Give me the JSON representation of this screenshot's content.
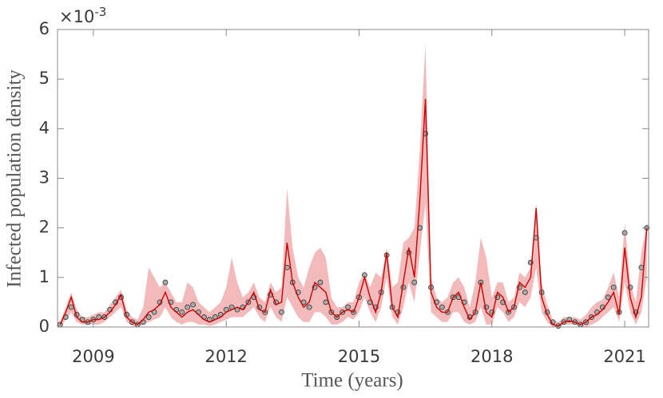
{
  "chart_data": {
    "type": "line",
    "x_label": "Time (years)",
    "y_label": "Infected population density",
    "y_scale_label": {
      "base": "×10",
      "exponent": "-3"
    },
    "xlim": [
      2008.19,
      2021.54
    ],
    "xticks": [
      2009,
      2012,
      2015,
      2018,
      2021
    ],
    "ylim": [
      0,
      6
    ],
    "yticks": [
      0,
      1,
      2,
      3,
      4,
      5,
      6
    ],
    "x": [
      2008.25,
      2008.375,
      2008.5,
      2008.625,
      2008.75,
      2008.875,
      2009.0,
      2009.125,
      2009.25,
      2009.375,
      2009.5,
      2009.625,
      2009.75,
      2009.875,
      2010.0,
      2010.125,
      2010.25,
      2010.375,
      2010.5,
      2010.625,
      2010.75,
      2010.875,
      2011.0,
      2011.125,
      2011.25,
      2011.375,
      2011.5,
      2011.625,
      2011.75,
      2011.875,
      2012.0,
      2012.125,
      2012.25,
      2012.375,
      2012.5,
      2012.625,
      2012.75,
      2012.875,
      2013.0,
      2013.125,
      2013.25,
      2013.375,
      2013.5,
      2013.625,
      2013.75,
      2013.875,
      2014.0,
      2014.125,
      2014.25,
      2014.375,
      2014.5,
      2014.625,
      2014.75,
      2014.875,
      2015.0,
      2015.125,
      2015.25,
      2015.375,
      2015.5,
      2015.625,
      2015.75,
      2015.875,
      2016.0,
      2016.125,
      2016.25,
      2016.375,
      2016.5,
      2016.625,
      2016.75,
      2016.875,
      2017.0,
      2017.125,
      2017.25,
      2017.375,
      2017.5,
      2017.625,
      2017.75,
      2017.875,
      2018.0,
      2018.125,
      2018.25,
      2018.375,
      2018.5,
      2018.625,
      2018.75,
      2018.875,
      2019.0,
      2019.125,
      2019.25,
      2019.375,
      2019.5,
      2019.625,
      2019.75,
      2019.875,
      2020.0,
      2020.125,
      2020.25,
      2020.375,
      2020.5,
      2020.625,
      2020.75,
      2020.875,
      2021.0,
      2021.125,
      2021.25,
      2021.375,
      2021.5
    ],
    "band": {
      "color": "#eea3a3",
      "lower": [
        0,
        0.15,
        0.3,
        0.1,
        0.05,
        0.05,
        0.05,
        0.05,
        0.1,
        0.2,
        0.3,
        0.4,
        0.1,
        0.02,
        0,
        0.05,
        0.1,
        0.15,
        0.2,
        0.4,
        0.2,
        0.1,
        0.05,
        0.1,
        0.1,
        0.05,
        0.05,
        0.02,
        0.05,
        0.1,
        0.15,
        0.2,
        0.2,
        0.2,
        0.3,
        0.4,
        0.2,
        0.1,
        0.4,
        0.2,
        0.1,
        0.6,
        0.4,
        0.2,
        0.1,
        0.1,
        0.3,
        0.3,
        0.2,
        0.05,
        0.05,
        0.1,
        0.2,
        0.15,
        0.3,
        0.6,
        0.3,
        0.1,
        0.4,
        1.0,
        0.2,
        0.05,
        0.4,
        0.9,
        0.5,
        1.5,
        2.5,
        0.3,
        0.2,
        0.1,
        0.1,
        0.3,
        0.3,
        0.1,
        0.05,
        0.1,
        0.4,
        0.05,
        0.05,
        0.4,
        0.3,
        0.1,
        0.2,
        0.5,
        0.4,
        0.6,
        1.2,
        0.3,
        0.1,
        0,
        0,
        0.05,
        0.05,
        0.05,
        0,
        0,
        0.05,
        0.1,
        0.2,
        0.3,
        0.4,
        0.1,
        0.9,
        0.3,
        0.05,
        0.3,
        1.0
      ],
      "upper": [
        0.1,
        0.4,
        0.7,
        0.35,
        0.2,
        0.2,
        0.25,
        0.3,
        0.3,
        0.45,
        0.6,
        0.75,
        0.35,
        0.2,
        0.15,
        0.4,
        1.2,
        1.0,
        0.8,
        0.9,
        0.7,
        0.5,
        0.5,
        0.9,
        0.8,
        0.5,
        0.4,
        0.3,
        0.4,
        0.5,
        0.8,
        1.4,
        0.9,
        0.6,
        0.7,
        0.9,
        0.6,
        0.5,
        0.9,
        0.7,
        0.8,
        2.8,
        1.6,
        1.0,
        0.8,
        1.2,
        1.5,
        1.6,
        1.4,
        0.6,
        0.4,
        0.4,
        0.5,
        0.5,
        0.9,
        1.1,
        0.8,
        1.1,
        1.0,
        1.6,
        0.8,
        0.9,
        1.7,
        1.8,
        2.0,
        3.6,
        5.7,
        1.0,
        0.6,
        0.5,
        0.6,
        0.9,
        1.0,
        0.8,
        0.4,
        0.9,
        1.8,
        1.4,
        0.6,
        0.9,
        0.9,
        0.5,
        0.6,
        1.1,
        1.0,
        1.2,
        2.5,
        0.9,
        0.45,
        0.15,
        0.1,
        0.2,
        0.2,
        0.2,
        0.15,
        0.25,
        0.4,
        0.5,
        0.55,
        0.8,
        1.1,
        0.6,
        2.1,
        0.9,
        0.5,
        1.5,
        2.1
      ]
    },
    "series": [
      {
        "kind": "scatter",
        "color": "#a9a9a9",
        "values": [
          0.05,
          0.2,
          0.4,
          0.25,
          0.15,
          0.1,
          0.15,
          0.2,
          0.2,
          0.35,
          0.5,
          0.6,
          0.25,
          0.1,
          0.05,
          0.1,
          0.2,
          0.3,
          0.5,
          0.9,
          0.5,
          0.35,
          0.3,
          0.4,
          0.45,
          0.3,
          0.2,
          0.15,
          0.2,
          0.25,
          0.35,
          0.4,
          0.35,
          0.4,
          0.5,
          0.6,
          0.4,
          0.3,
          0.65,
          0.5,
          0.3,
          1.2,
          0.9,
          0.7,
          0.5,
          0.4,
          0.8,
          0.9,
          0.5,
          0.3,
          0.2,
          0.3,
          0.4,
          0.3,
          0.6,
          1.05,
          0.5,
          0.4,
          0.7,
          1.45,
          0.4,
          0.3,
          0.8,
          1.5,
          0.9,
          2.0,
          3.9,
          0.8,
          0.5,
          0.4,
          0.3,
          0.6,
          0.6,
          0.5,
          0.2,
          0.3,
          0.9,
          0.4,
          0.3,
          0.6,
          0.5,
          0.3,
          0.4,
          0.8,
          0.7,
          1.3,
          1.8,
          0.7,
          0.3,
          0.1,
          0.02,
          0.1,
          0.15,
          0.1,
          0.05,
          0.1,
          0.2,
          0.3,
          0.4,
          0.6,
          0.8,
          0.3,
          1.9,
          0.8,
          0.3,
          1.2,
          2.0
        ]
      },
      {
        "kind": "line",
        "color": "#cc0000",
        "values": [
          0.05,
          0.3,
          0.6,
          0.2,
          0.1,
          0.1,
          0.15,
          0.15,
          0.2,
          0.3,
          0.45,
          0.65,
          0.2,
          0.1,
          0.05,
          0.15,
          0.3,
          0.35,
          0.45,
          0.7,
          0.4,
          0.3,
          0.2,
          0.3,
          0.35,
          0.25,
          0.15,
          0.1,
          0.15,
          0.2,
          0.3,
          0.35,
          0.4,
          0.35,
          0.5,
          0.7,
          0.35,
          0.3,
          0.75,
          0.45,
          0.5,
          1.7,
          0.9,
          0.6,
          0.4,
          0.5,
          0.9,
          0.8,
          0.7,
          0.3,
          0.2,
          0.3,
          0.35,
          0.3,
          0.6,
          1.0,
          0.6,
          0.3,
          0.7,
          1.5,
          0.4,
          0.2,
          0.9,
          1.6,
          1.0,
          2.6,
          4.6,
          0.7,
          0.4,
          0.3,
          0.3,
          0.6,
          0.7,
          0.4,
          0.15,
          0.3,
          0.9,
          0.3,
          0.2,
          0.7,
          0.6,
          0.3,
          0.4,
          0.9,
          0.8,
          1.0,
          2.4,
          0.6,
          0.25,
          0.05,
          0.02,
          0.1,
          0.12,
          0.1,
          0.05,
          0.1,
          0.2,
          0.25,
          0.35,
          0.5,
          0.7,
          0.25,
          1.6,
          0.6,
          0.2,
          0.6,
          2.0
        ]
      }
    ]
  }
}
